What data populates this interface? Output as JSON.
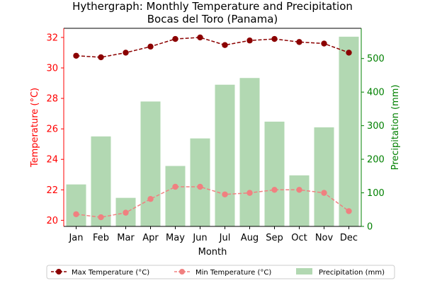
{
  "chart_data": {
    "type": "bar+line",
    "title_line1": "Hythergraph: Monthly Temperature and Precipitation",
    "title_line2": "Bocas del Toro (Panama)",
    "xlabel": "Month",
    "ylabel_left": "Temperature (°C)",
    "ylabel_right": "Precipitation (mm)",
    "categories": [
      "Jan",
      "Feb",
      "Mar",
      "Apr",
      "May",
      "Jun",
      "Jul",
      "Aug",
      "Sep",
      "Oct",
      "Nov",
      "Dec"
    ],
    "left_ylim": [
      19.6,
      32.6
    ],
    "left_ticks": [
      "20",
      "22",
      "24",
      "26",
      "28",
      "30",
      "32"
    ],
    "right_ylim": [
      0,
      590
    ],
    "right_ticks": [
      "0",
      "100",
      "200",
      "300",
      "400",
      "500"
    ],
    "series": [
      {
        "name": "Max Temperature (°C)",
        "axis": "left",
        "kind": "line",
        "color": "#8b0000",
        "values": [
          30.8,
          30.7,
          31.0,
          31.4,
          31.9,
          32.0,
          31.5,
          31.8,
          31.9,
          31.7,
          31.6,
          31.0
        ]
      },
      {
        "name": "Min Temperature (°C)",
        "axis": "left",
        "kind": "line",
        "color": "#f08080",
        "values": [
          20.4,
          20.2,
          20.5,
          21.4,
          22.2,
          22.2,
          21.7,
          21.8,
          22.0,
          22.0,
          21.8,
          20.6
        ]
      },
      {
        "name": "Precipitation (mm)",
        "axis": "right",
        "kind": "bar",
        "color": "#b2d8b2",
        "values": [
          125,
          268,
          85,
          372,
          180,
          262,
          422,
          442,
          312,
          152,
          295,
          565
        ]
      }
    ],
    "left_axis_color": "#ff0000",
    "right_axis_color": "#008000",
    "grid": false,
    "legend_placement": "bottom-center"
  }
}
